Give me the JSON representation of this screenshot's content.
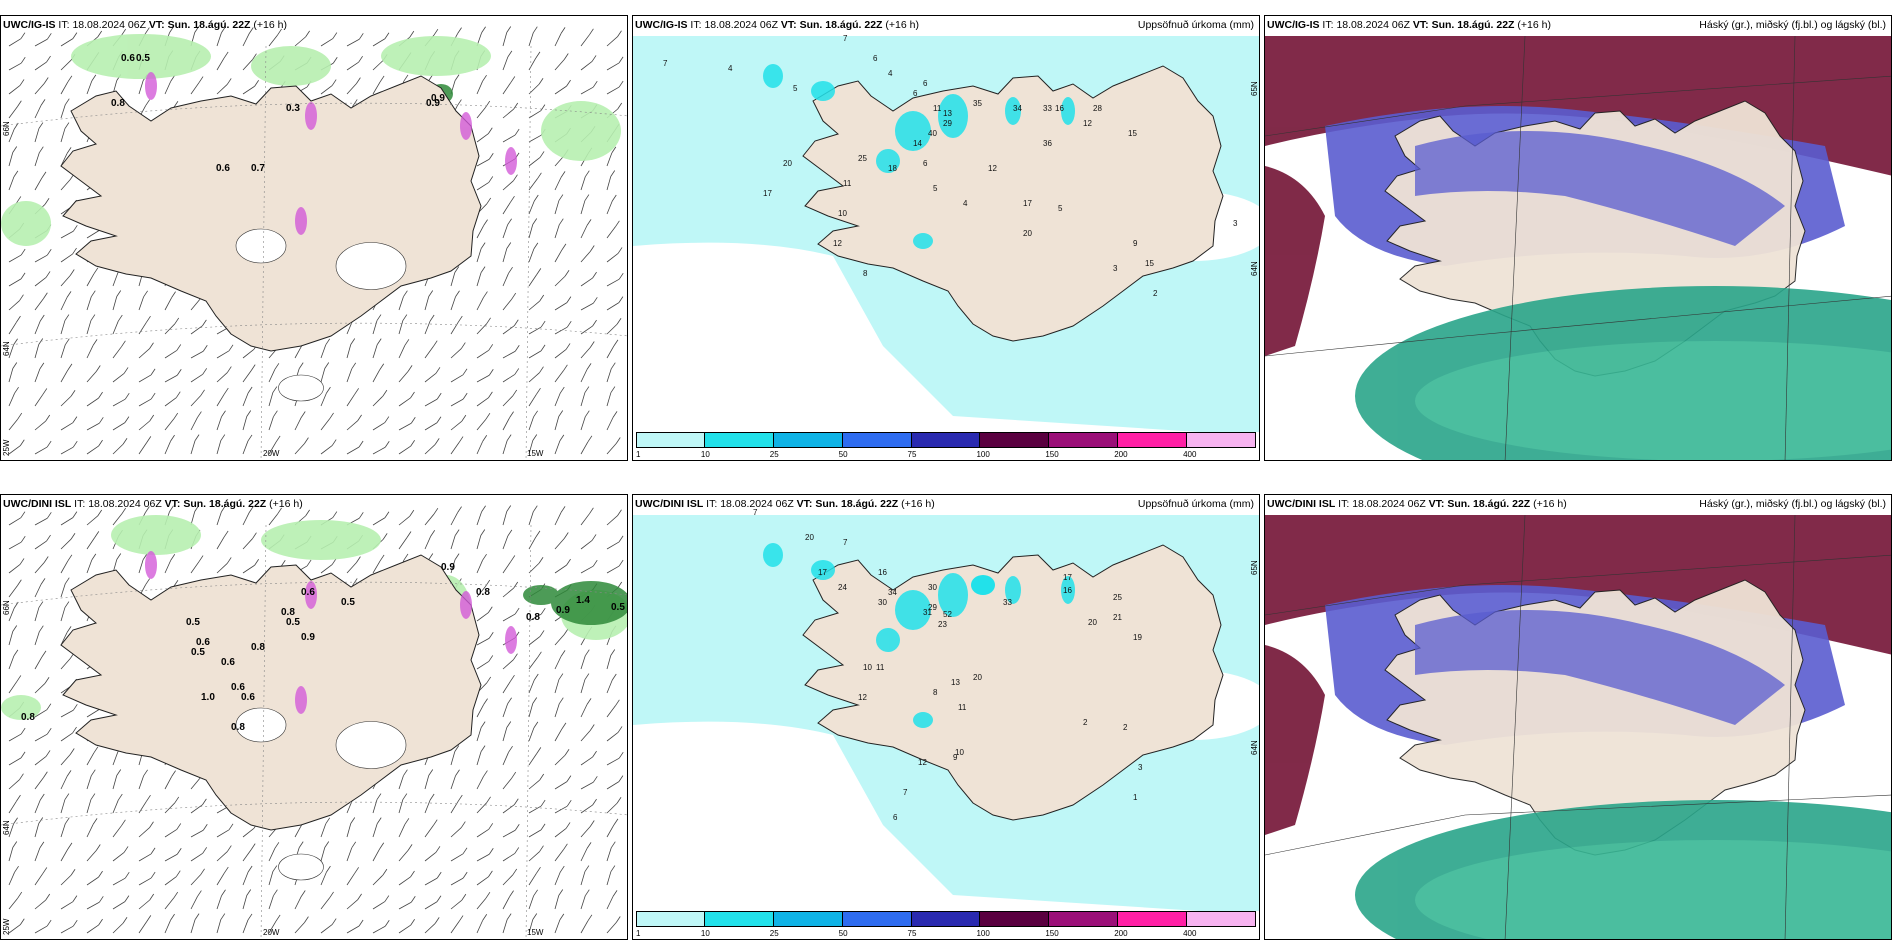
{
  "colors": {
    "land": "#efe3d6",
    "precip_light": "#bff7f7",
    "precip_cyan": "#22e1ea",
    "wind_green": "#b7efb0",
    "wind_dark": "#2f8a3a",
    "cloud_high": "#7a1f3f",
    "cloud_mid": "#5a5ccf",
    "cloud_low": "#2aa58a"
  },
  "panels": [
    {
      "id": "igis-wind",
      "model": "UWC/IG-IS",
      "it_label": "IT:",
      "it": "18.08.2024 06Z",
      "vt_label": "VT:",
      "vt": "Sun. 18.ágú. 22Z",
      "lead": "(+16 h)",
      "right_title": "",
      "lon_labels": [
        "20W",
        "15W"
      ],
      "lat_labels": [
        "66N",
        "64N",
        "25W"
      ],
      "values": [
        "0.6",
        "0.5",
        "0.8",
        "0.3",
        "0.9",
        "0.9",
        "0.6",
        "0.7"
      ]
    },
    {
      "id": "igis-precip",
      "model": "UWC/IG-IS",
      "it_label": "IT:",
      "it": "18.08.2024 06Z",
      "vt_label": "VT:",
      "vt": "Sun. 18.ágú. 22Z",
      "lead": "(+16 h)",
      "right_title": "Uppsöfnuð úrkoma (mm)",
      "lon_labels": [],
      "lat_labels": [
        "65N",
        "64N"
      ],
      "values": [
        "7",
        "7",
        "6",
        "4",
        "5",
        "4",
        "6",
        "6",
        "11",
        "13",
        "14",
        "40",
        "29",
        "35",
        "34",
        "33",
        "16",
        "12",
        "28",
        "36",
        "15",
        "17",
        "10",
        "11",
        "20",
        "18",
        "25",
        "6",
        "5",
        "4",
        "12",
        "17",
        "20",
        "5",
        "9",
        "3",
        "2",
        "3",
        "15",
        "8",
        "12"
      ]
    },
    {
      "id": "igis-cloud",
      "model": "UWC/IG-IS",
      "it_label": "IT:",
      "it": "18.08.2024 06Z",
      "vt_label": "VT:",
      "vt": "Sun. 18.ágú. 22Z",
      "lead": "(+16 h)",
      "right_title": "Háský (gr.), miðský (fj.bl.) og lágský (bl.)",
      "lon_labels": [],
      "lat_labels": [],
      "values": []
    },
    {
      "id": "dini-wind",
      "model": "UWC/DINI ISL",
      "it_label": "IT:",
      "it": "18.08.2024 06Z",
      "vt_label": "VT:",
      "vt": "Sun. 18.ágú. 22Z",
      "lead": "(+16 h)",
      "right_title": "",
      "lon_labels": [
        "20W",
        "15W"
      ],
      "lat_labels": [
        "66N",
        "64N",
        "25W"
      ],
      "values": [
        "0.8",
        "0.5",
        "0.6",
        "0.6",
        "0.8",
        "0.5",
        "0.9",
        "0.8",
        "1.4",
        "0.8",
        "0.9",
        "0.5",
        "0.5",
        "0.6",
        "0.6",
        "0.8",
        "0.9",
        "1.0",
        "0.8",
        "0.6",
        "0.5"
      ]
    },
    {
      "id": "dini-precip",
      "model": "UWC/DINI ISL",
      "it_label": "IT:",
      "it": "18.08.2024 06Z",
      "vt_label": "VT:",
      "vt": "Sun. 18.ágú. 22Z",
      "lead": "(+16 h)",
      "right_title": "Uppsöfnuð úrkoma (mm)",
      "lon_labels": [],
      "lat_labels": [
        "65N",
        "64N"
      ],
      "values": [
        "7",
        "7",
        "20",
        "24",
        "17",
        "16",
        "30",
        "31",
        "52",
        "29",
        "23",
        "34",
        "30",
        "33",
        "16",
        "17",
        "20",
        "21",
        "25",
        "19",
        "10",
        "11",
        "12",
        "20",
        "8",
        "11",
        "13",
        "9",
        "12",
        "10",
        "7",
        "6",
        "2",
        "1",
        "3",
        "2"
      ]
    },
    {
      "id": "dini-cloud",
      "model": "UWC/DINI ISL",
      "it_label": "IT:",
      "it": "18.08.2024 06Z",
      "vt_label": "VT:",
      "vt": "Sun. 18.ágú. 22Z",
      "lead": "(+16 h)",
      "right_title": "Háský (gr.), miðský (fj.bl.) og lágský (bl.)",
      "lon_labels": [],
      "lat_labels": [],
      "values": []
    }
  ],
  "colorbar": {
    "labels": [
      "1",
      "10",
      "25",
      "50",
      "75",
      "100",
      "150",
      "200",
      "400"
    ],
    "colors": [
      "#bff7f7",
      "#22e1ea",
      "#0fb3e6",
      "#2e6cf0",
      "#2a2ab0",
      "#5a0040",
      "#9b0f78",
      "#ff1fa5",
      "#f7b3f0"
    ]
  }
}
